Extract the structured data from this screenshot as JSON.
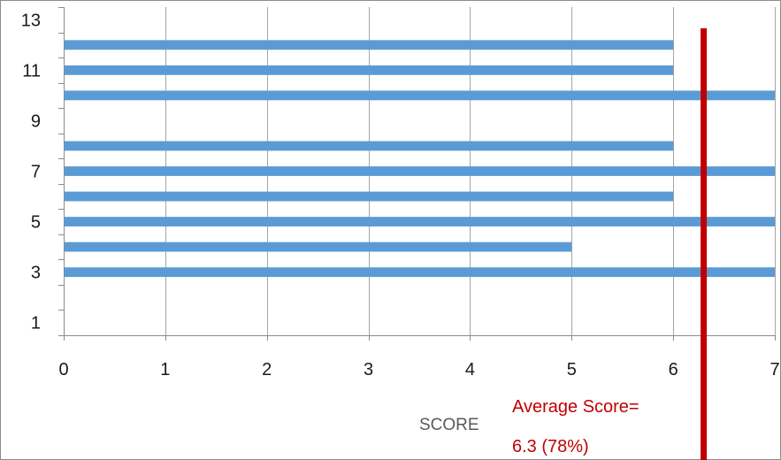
{
  "chart_data": {
    "type": "bar",
    "orientation": "horizontal",
    "xlabel": "SCORE",
    "ylabel": "",
    "xlim": [
      0,
      7
    ],
    "ylim": [
      0.5,
      13.5
    ],
    "x_ticks": [
      "0",
      "1",
      "2",
      "3",
      "4",
      "5",
      "6",
      "7"
    ],
    "y_ticks": [
      "1",
      "3",
      "5",
      "7",
      "9",
      "11",
      "13"
    ],
    "grid": "vertical",
    "bar_color": "#5b9bd5",
    "categories": [
      1,
      2,
      3,
      4,
      5,
      6,
      7,
      8,
      9,
      10,
      11,
      12,
      13
    ],
    "values": [
      null,
      null,
      7,
      5,
      7,
      6,
      7,
      6,
      null,
      7,
      6,
      6,
      null
    ],
    "reference_line": {
      "value": 6.3,
      "color": "#c00000",
      "label_line1": "Average Score=",
      "label_line2": "6.3 (78%)"
    }
  }
}
